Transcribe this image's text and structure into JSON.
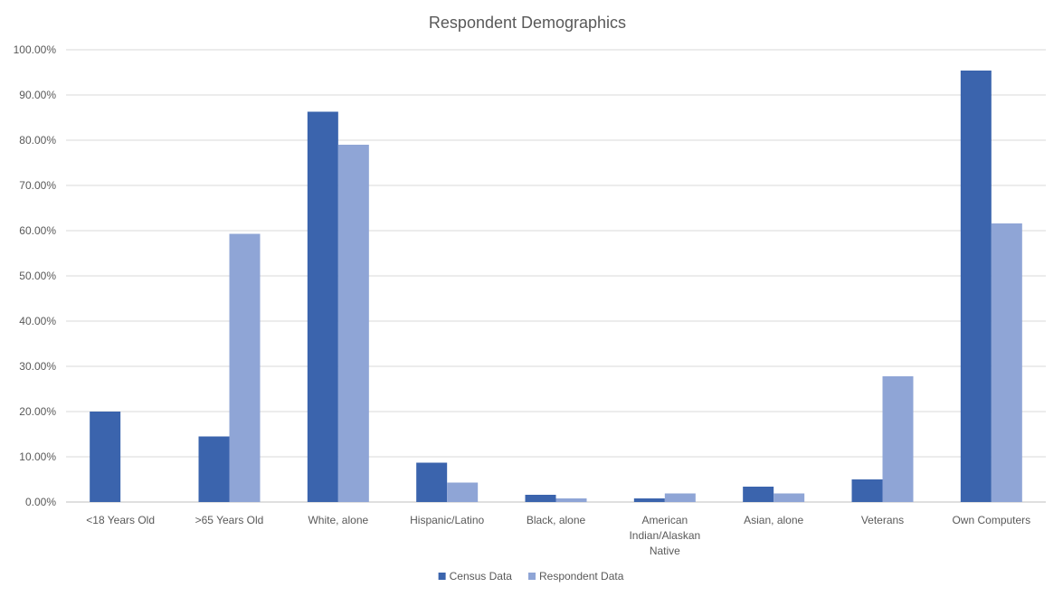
{
  "chart_data": {
    "type": "bar",
    "title": "Respondent Demographics",
    "categories": [
      "<18 Years Old",
      ">65 Years Old",
      "White, alone",
      "Hispanic/Latino",
      "Black, alone",
      "American Indian/Alaskan Native",
      "Asian, alone",
      "Veterans",
      "Own Computers"
    ],
    "category_lines": [
      [
        "<18 Years Old"
      ],
      [
        ">65 Years Old"
      ],
      [
        "White, alone"
      ],
      [
        "Hispanic/Latino"
      ],
      [
        "Black, alone"
      ],
      [
        "American",
        "Indian/Alaskan",
        "Native"
      ],
      [
        "Asian, alone"
      ],
      [
        "Veterans"
      ],
      [
        "Own Computers"
      ]
    ],
    "series": [
      {
        "name": "Census Data",
        "color": "#3b64ad",
        "values": [
          20.0,
          14.5,
          86.3,
          8.7,
          1.6,
          0.8,
          3.4,
          5.0,
          95.4
        ]
      },
      {
        "name": "Respondent Data",
        "color": "#8fa5d6",
        "values": [
          0.0,
          59.3,
          79.0,
          4.3,
          0.8,
          1.9,
          1.9,
          27.8,
          61.6
        ]
      }
    ],
    "ylim": [
      0,
      100
    ],
    "yticks": [
      "0.00%",
      "10.00%",
      "20.00%",
      "30.00%",
      "40.00%",
      "50.00%",
      "60.00%",
      "70.00%",
      "80.00%",
      "90.00%",
      "100.00%"
    ],
    "xlabel": "",
    "ylabel": "",
    "grid": true,
    "legend": "bottom"
  }
}
